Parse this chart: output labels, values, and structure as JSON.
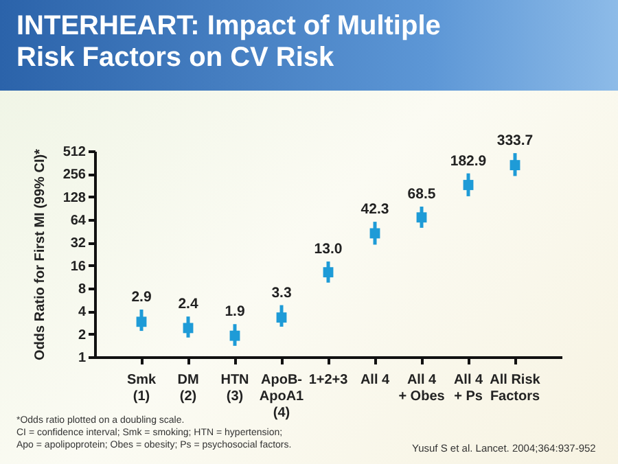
{
  "chart_data": {
    "type": "scatter",
    "title": "INTERHEART: Impact of Multiple Risk Factors on CV Risk",
    "ylabel": "Odds Ratio for First MI (99% CI)*",
    "categories": [
      "Smk\n(1)",
      "DM\n(2)",
      "HTN\n(3)",
      "ApoB-\nApoA1\n(4)",
      "1+2+3",
      "All 4",
      "All 4\n+ Obes",
      "All 4\n+ Ps",
      "All Risk\nFactors"
    ],
    "values": [
      2.9,
      2.4,
      1.9,
      3.3,
      13.0,
      42.3,
      68.5,
      182.9,
      333.7
    ],
    "value_labels": [
      "2.9",
      "2.4",
      "1.9",
      "3.3",
      "13.0",
      "42.3",
      "68.5",
      "182.9",
      "333.7"
    ],
    "errors": [
      [
        2.2,
        4.2
      ],
      [
        1.8,
        3.4
      ],
      [
        1.4,
        2.7
      ],
      [
        2.5,
        4.8
      ],
      [
        9.5,
        18
      ],
      [
        30,
        60
      ],
      [
        50,
        95
      ],
      [
        130,
        260
      ],
      [
        240,
        480
      ]
    ],
    "color": "#1e9bd7",
    "marker": "square",
    "log": "y",
    "ylim": [
      1,
      512
    ],
    "yticks": [
      1,
      2,
      4,
      8,
      16,
      32,
      64,
      128,
      256,
      512
    ],
    "annotations": [
      "*Odds ratio plotted on a doubling scale.",
      "CI = confidence interval; Smk = smoking; HTN = hypertension;",
      "Apo = apolipoprotein; Obes = obesity; Ps = psychosocial factors.",
      "Yusuf S et al. Lancet. 2004;364:937-952"
    ]
  }
}
